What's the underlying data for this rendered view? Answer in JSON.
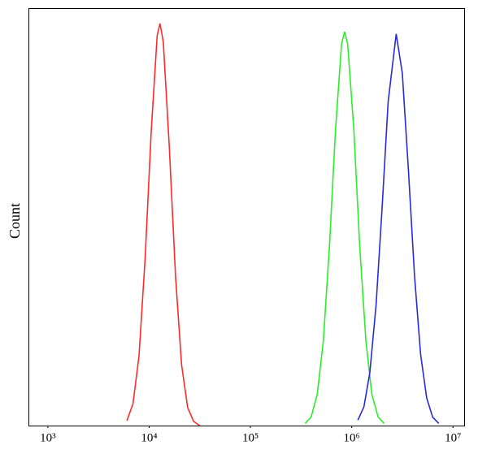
{
  "chart_data": {
    "type": "line",
    "y_label": "Count",
    "xscale": "log",
    "xlim": [
      655,
      12900000
    ],
    "ylim": [
      0,
      100
    ],
    "xticks": [
      {
        "value": 1000,
        "label": "10³"
      },
      {
        "value": 10000,
        "label": "10⁴"
      },
      {
        "value": 100000,
        "label": "10⁵"
      },
      {
        "value": 1000000,
        "label": "10⁶"
      },
      {
        "value": 10000000,
        "label": "10⁷"
      }
    ],
    "series": [
      {
        "color": "#ff2a2a",
        "x": [
          6030,
          6920,
          7940,
          9120,
          10500,
          12000,
          12800,
          13800,
          15800,
          18200,
          20900,
          24000,
          27500,
          31600
        ],
        "values": [
          1.2,
          5.2,
          16.7,
          40,
          71,
          93.6,
          96.5,
          92,
          67,
          36,
          14.6,
          4.3,
          1.0,
          0
        ]
      },
      {
        "color": "#2aee2a",
        "x": [
          347000,
          398000,
          457000,
          525000,
          603000,
          692000,
          794000,
          851000,
          912000,
          1050000,
          1200000,
          1380000,
          1580000,
          1820000,
          2090000
        ],
        "values": [
          0.5,
          2.1,
          7.5,
          20.4,
          43,
          71,
          91.6,
          94.5,
          91.6,
          71,
          43,
          20.4,
          7.5,
          2.1,
          0.5
        ]
      },
      {
        "color": "#2a2ad8",
        "x": [
          1150000,
          1320000,
          1510000,
          1740000,
          2000000,
          2290000,
          2750000,
          3160000,
          3630000,
          4170000,
          4790000,
          5500000,
          6310000,
          7240000
        ],
        "values": [
          1.3,
          4.5,
          12.7,
          28.9,
          52.6,
          77.7,
          94,
          84.6,
          61.4,
          36,
          17.1,
          6.6,
          2.0,
          0.5
        ]
      }
    ]
  }
}
